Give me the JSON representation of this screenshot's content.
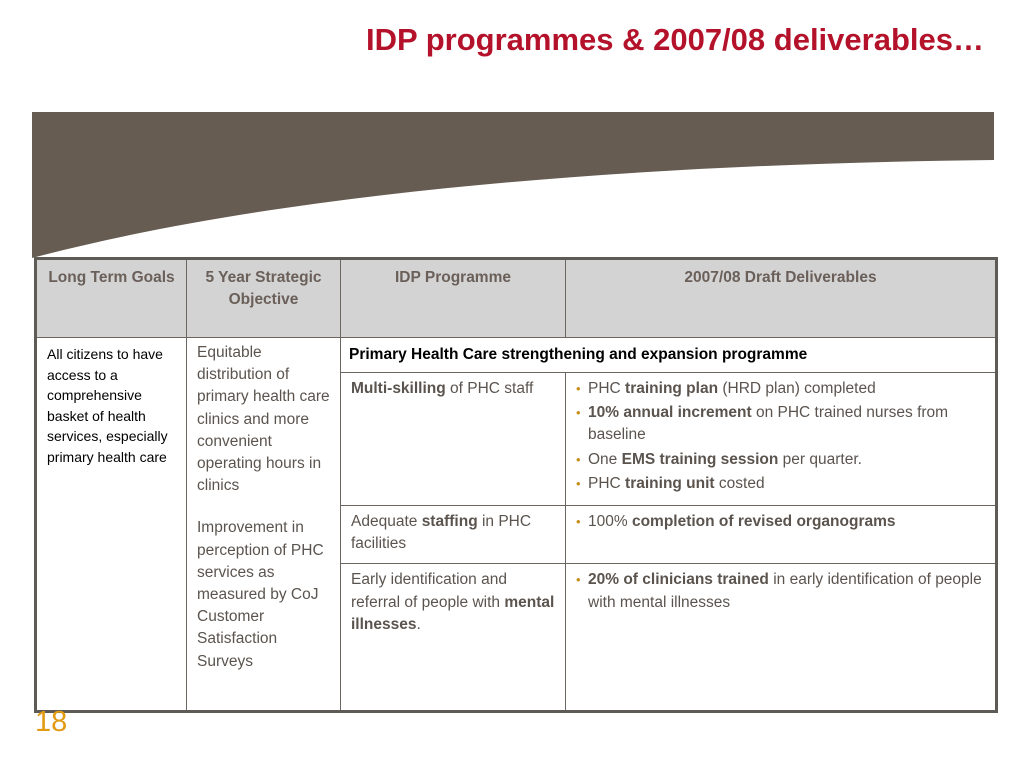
{
  "slide": {
    "title": "IDP programmes & 2007/08 deliverables…",
    "page_number": "18",
    "colors": {
      "title": "#b4122a",
      "banner": "#665c52",
      "header_bg": "#d3d3d3",
      "bullet": "#c8901a",
      "page_number": "#e19a12"
    }
  },
  "table": {
    "headers": [
      "Long Term Goals",
      "5 Year Strategic Objective",
      "IDP Programme",
      "2007/08 Draft Deliverables"
    ],
    "long_term_goal": "All citizens to have access to a comprehensive basket of health services, especially primary health care",
    "objectives": [
      "Equitable distribution of primary health care clinics and more convenient operating hours in clinics",
      "Improvement in perception of PHC services as measured by CoJ Customer Satisfaction Surveys"
    ],
    "programme_title": "Primary Health Care strengthening and expansion programme",
    "rows": [
      {
        "programme": {
          "bold": "Multi-skilling",
          "rest": " of PHC staff"
        },
        "deliverables": [
          {
            "pre": "PHC ",
            "bold": "training plan",
            "post": " (HRD plan) completed"
          },
          {
            "pre": "",
            "bold": "10% annual increment",
            "post": " on PHC trained nurses from baseline"
          },
          {
            "pre": "One ",
            "bold": "EMS training session",
            "post": " per quarter."
          },
          {
            "pre": "PHC ",
            "bold": "training unit",
            "post": " costed"
          }
        ]
      },
      {
        "programme": {
          "pre": "Adequate ",
          "bold": "staffing",
          "rest": " in PHC facilities"
        },
        "deliverables": [
          {
            "pre": "100% ",
            "bold": "completion of revised organograms",
            "post": ""
          }
        ]
      },
      {
        "programme": {
          "pre": "Early identification and referral of people with ",
          "bold": "mental illnesses",
          "rest": "."
        },
        "deliverables": [
          {
            "pre": "",
            "bold": "20% of clinicians trained",
            "post": " in early identification of people with mental illnesses"
          }
        ]
      }
    ]
  }
}
